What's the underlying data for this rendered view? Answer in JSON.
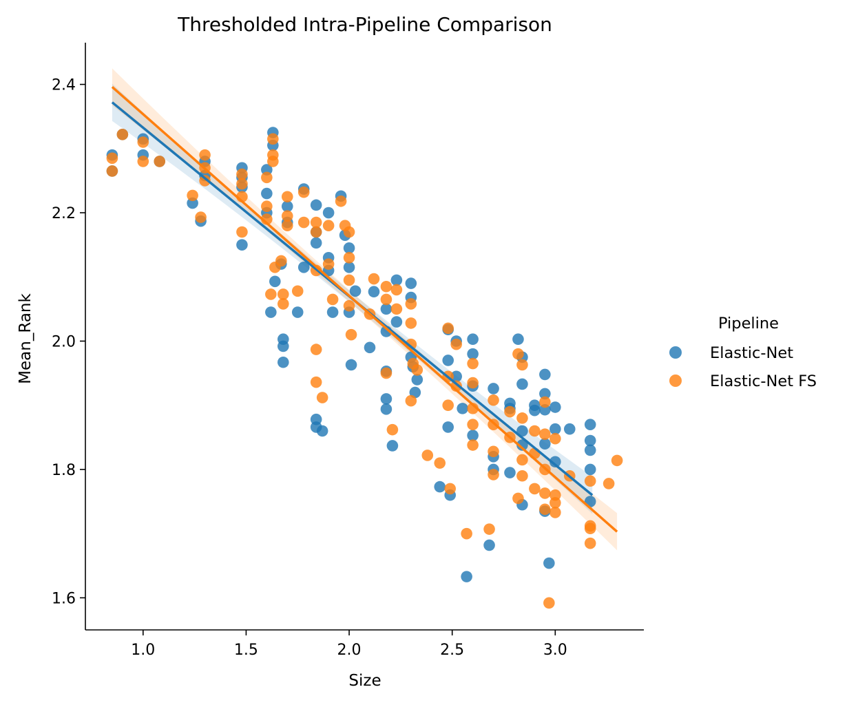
{
  "chart_data": {
    "type": "scatter",
    "title": "Thresholded Intra-Pipeline Comparison",
    "xlabel": "Size",
    "ylabel": "Mean_Rank",
    "xlim": [
      0.72,
      3.43
    ],
    "ylim": [
      1.55,
      2.465
    ],
    "xticks": [
      1.0,
      1.5,
      2.0,
      2.5,
      3.0
    ],
    "xtick_labels": [
      "1.0",
      "1.5",
      "2.0",
      "2.5",
      "3.0"
    ],
    "yticks": [
      1.6,
      1.8,
      2.0,
      2.2,
      2.4
    ],
    "ytick_labels": [
      "1.6",
      "1.8",
      "2.0",
      "2.2",
      "2.4"
    ],
    "grid": false,
    "legend": {
      "title": "Pipeline",
      "placement": "right"
    },
    "series": [
      {
        "name": "Elastic-Net",
        "color": "#1f77b4",
        "points": [
          [
            0.85,
            2.29
          ],
          [
            0.85,
            2.265
          ],
          [
            0.9,
            2.322
          ],
          [
            1.0,
            2.315
          ],
          [
            1.0,
            2.29
          ],
          [
            1.08,
            2.28
          ],
          [
            1.24,
            2.215
          ],
          [
            1.28,
            2.187
          ],
          [
            1.3,
            2.28
          ],
          [
            1.3,
            2.258
          ],
          [
            1.48,
            2.27
          ],
          [
            1.48,
            2.255
          ],
          [
            1.48,
            2.24
          ],
          [
            1.48,
            2.15
          ],
          [
            1.6,
            2.267
          ],
          [
            1.6,
            2.23
          ],
          [
            1.6,
            2.2
          ],
          [
            1.62,
            2.045
          ],
          [
            1.63,
            2.325
          ],
          [
            1.63,
            2.305
          ],
          [
            1.64,
            2.093
          ],
          [
            1.67,
            2.12
          ],
          [
            1.68,
            2.003
          ],
          [
            1.68,
            1.992
          ],
          [
            1.68,
            1.967
          ],
          [
            1.7,
            2.21
          ],
          [
            1.7,
            2.185
          ],
          [
            1.75,
            2.045
          ],
          [
            1.78,
            2.237
          ],
          [
            1.78,
            2.115
          ],
          [
            1.84,
            2.212
          ],
          [
            1.84,
            2.17
          ],
          [
            1.84,
            2.153
          ],
          [
            1.84,
            1.878
          ],
          [
            1.84,
            1.866
          ],
          [
            1.87,
            1.86
          ],
          [
            1.9,
            2.2
          ],
          [
            1.9,
            2.13
          ],
          [
            1.9,
            2.11
          ],
          [
            1.92,
            2.045
          ],
          [
            1.96,
            2.226
          ],
          [
            1.98,
            2.165
          ],
          [
            2.0,
            2.145
          ],
          [
            2.0,
            2.115
          ],
          [
            2.0,
            2.045
          ],
          [
            2.01,
            1.963
          ],
          [
            2.03,
            2.078
          ],
          [
            2.1,
            1.99
          ],
          [
            2.12,
            2.077
          ],
          [
            2.18,
            2.05
          ],
          [
            2.18,
            2.015
          ],
          [
            2.18,
            1.953
          ],
          [
            2.18,
            1.91
          ],
          [
            2.18,
            1.894
          ],
          [
            2.21,
            1.837
          ],
          [
            2.23,
            2.095
          ],
          [
            2.23,
            2.03
          ],
          [
            2.3,
            2.09
          ],
          [
            2.3,
            2.068
          ],
          [
            2.3,
            1.975
          ],
          [
            2.31,
            1.96
          ],
          [
            2.32,
            1.92
          ],
          [
            2.33,
            1.94
          ],
          [
            2.44,
            1.773
          ],
          [
            2.48,
            2.018
          ],
          [
            2.48,
            1.97
          ],
          [
            2.48,
            1.866
          ],
          [
            2.49,
            1.76
          ],
          [
            2.52,
            2.0
          ],
          [
            2.52,
            1.945
          ],
          [
            2.55,
            1.895
          ],
          [
            2.57,
            1.633
          ],
          [
            2.6,
            2.003
          ],
          [
            2.6,
            1.98
          ],
          [
            2.6,
            1.93
          ],
          [
            2.6,
            1.853
          ],
          [
            2.68,
            1.682
          ],
          [
            2.7,
            1.926
          ],
          [
            2.7,
            1.82
          ],
          [
            2.7,
            1.8
          ],
          [
            2.78,
            1.903
          ],
          [
            2.78,
            1.895
          ],
          [
            2.78,
            1.795
          ],
          [
            2.82,
            2.003
          ],
          [
            2.84,
            1.975
          ],
          [
            2.84,
            1.933
          ],
          [
            2.84,
            1.86
          ],
          [
            2.84,
            1.838
          ],
          [
            2.84,
            1.745
          ],
          [
            2.9,
            1.9
          ],
          [
            2.9,
            1.892
          ],
          [
            2.95,
            1.948
          ],
          [
            2.95,
            1.918
          ],
          [
            2.95,
            1.893
          ],
          [
            2.95,
            1.84
          ],
          [
            2.95,
            1.735
          ],
          [
            2.97,
            1.654
          ],
          [
            3.0,
            1.897
          ],
          [
            3.0,
            1.863
          ],
          [
            3.0,
            1.812
          ],
          [
            3.07,
            1.863
          ],
          [
            3.17,
            1.87
          ],
          [
            3.17,
            1.845
          ],
          [
            3.17,
            1.83
          ],
          [
            3.17,
            1.8
          ],
          [
            3.17,
            1.75
          ]
        ],
        "regression": {
          "x": [
            0.85,
            3.18
          ],
          "y": [
            2.372,
            1.76
          ]
        }
      },
      {
        "name": "Elastic-Net FS",
        "color": "#ff7f0e",
        "points": [
          [
            0.85,
            2.285
          ],
          [
            0.85,
            2.265
          ],
          [
            0.9,
            2.322
          ],
          [
            1.0,
            2.31
          ],
          [
            1.0,
            2.28
          ],
          [
            1.08,
            2.28
          ],
          [
            1.24,
            2.227
          ],
          [
            1.28,
            2.193
          ],
          [
            1.3,
            2.29
          ],
          [
            1.3,
            2.27
          ],
          [
            1.3,
            2.25
          ],
          [
            1.48,
            2.26
          ],
          [
            1.48,
            2.245
          ],
          [
            1.48,
            2.225
          ],
          [
            1.48,
            2.17
          ],
          [
            1.6,
            2.255
          ],
          [
            1.6,
            2.21
          ],
          [
            1.6,
            2.19
          ],
          [
            1.62,
            2.073
          ],
          [
            1.63,
            2.315
          ],
          [
            1.63,
            2.29
          ],
          [
            1.63,
            2.28
          ],
          [
            1.64,
            2.115
          ],
          [
            1.67,
            2.125
          ],
          [
            1.68,
            2.073
          ],
          [
            1.68,
            2.058
          ],
          [
            1.7,
            2.225
          ],
          [
            1.7,
            2.195
          ],
          [
            1.7,
            2.18
          ],
          [
            1.75,
            2.078
          ],
          [
            1.78,
            2.232
          ],
          [
            1.78,
            2.185
          ],
          [
            1.84,
            2.185
          ],
          [
            1.84,
            2.17
          ],
          [
            1.84,
            2.11
          ],
          [
            1.84,
            1.987
          ],
          [
            1.84,
            1.936
          ],
          [
            1.87,
            1.912
          ],
          [
            1.9,
            2.18
          ],
          [
            1.9,
            2.12
          ],
          [
            1.92,
            2.065
          ],
          [
            1.96,
            2.218
          ],
          [
            1.98,
            2.18
          ],
          [
            2.0,
            2.17
          ],
          [
            2.0,
            2.13
          ],
          [
            2.0,
            2.095
          ],
          [
            2.0,
            2.055
          ],
          [
            2.01,
            2.01
          ],
          [
            2.1,
            2.042
          ],
          [
            2.12,
            2.097
          ],
          [
            2.18,
            2.085
          ],
          [
            2.18,
            2.065
          ],
          [
            2.18,
            1.95
          ],
          [
            2.21,
            1.862
          ],
          [
            2.23,
            2.08
          ],
          [
            2.23,
            2.05
          ],
          [
            2.3,
            2.058
          ],
          [
            2.3,
            2.028
          ],
          [
            2.3,
            1.995
          ],
          [
            2.31,
            1.965
          ],
          [
            2.3,
            1.907
          ],
          [
            2.33,
            1.955
          ],
          [
            2.38,
            1.822
          ],
          [
            2.44,
            1.81
          ],
          [
            2.48,
            2.02
          ],
          [
            2.48,
            1.945
          ],
          [
            2.48,
            1.9
          ],
          [
            2.49,
            1.77
          ],
          [
            2.52,
            1.995
          ],
          [
            2.52,
            1.93
          ],
          [
            2.57,
            1.7
          ],
          [
            2.6,
            1.965
          ],
          [
            2.6,
            1.935
          ],
          [
            2.6,
            1.895
          ],
          [
            2.6,
            1.87
          ],
          [
            2.6,
            1.838
          ],
          [
            2.68,
            1.707
          ],
          [
            2.7,
            1.908
          ],
          [
            2.7,
            1.87
          ],
          [
            2.7,
            1.828
          ],
          [
            2.7,
            1.792
          ],
          [
            2.78,
            1.89
          ],
          [
            2.78,
            1.85
          ],
          [
            2.82,
            1.98
          ],
          [
            2.82,
            1.755
          ],
          [
            2.84,
            1.963
          ],
          [
            2.84,
            1.88
          ],
          [
            2.84,
            1.815
          ],
          [
            2.84,
            1.79
          ],
          [
            2.9,
            1.86
          ],
          [
            2.9,
            1.825
          ],
          [
            2.9,
            1.77
          ],
          [
            2.95,
            1.905
          ],
          [
            2.95,
            1.855
          ],
          [
            2.95,
            1.8
          ],
          [
            2.95,
            1.763
          ],
          [
            2.95,
            1.738
          ],
          [
            2.97,
            1.592
          ],
          [
            3.0,
            1.848
          ],
          [
            3.0,
            1.76
          ],
          [
            3.0,
            1.748
          ],
          [
            3.0,
            1.733
          ],
          [
            3.07,
            1.79
          ],
          [
            3.17,
            1.782
          ],
          [
            3.17,
            1.712
          ],
          [
            3.17,
            1.708
          ],
          [
            3.17,
            1.685
          ],
          [
            3.26,
            1.778
          ],
          [
            3.3,
            1.814
          ]
        ],
        "regression": {
          "x": [
            0.85,
            3.3
          ],
          "y": [
            2.396,
            1.703
          ]
        }
      }
    ]
  }
}
